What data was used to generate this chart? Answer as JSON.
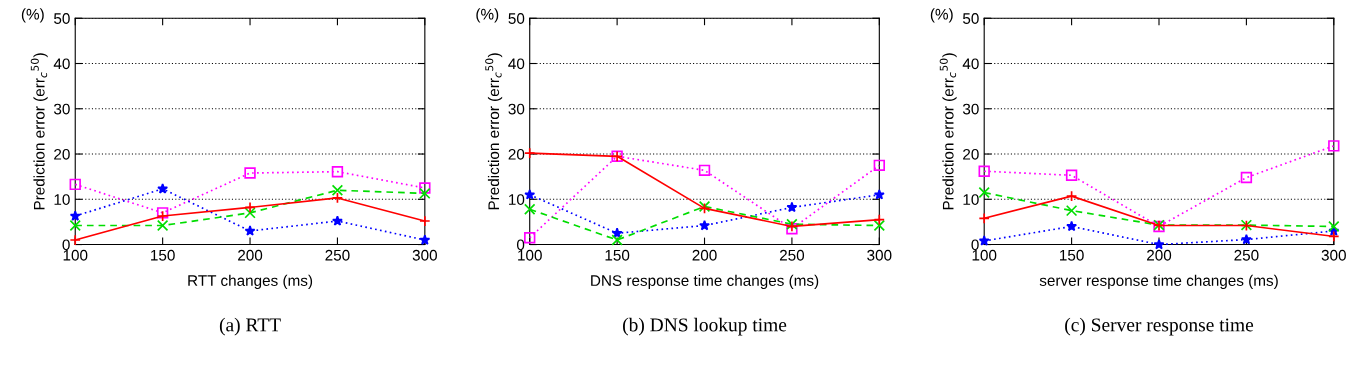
{
  "chart_data": [
    {
      "type": "line",
      "title": "(a) RTT",
      "xlabel": "RTT changes (ms)",
      "ylabel": "Prediction error (err$_{c}$$^{50}$)",
      "annotations": [
        "(%)"
      ],
      "x": [
        100,
        150,
        200,
        250,
        300
      ],
      "xlim": [
        100,
        300
      ],
      "xticks": [
        100,
        150,
        200,
        250,
        300
      ],
      "ylim": [
        0,
        50
      ],
      "yticks": [
        0,
        10,
        20,
        30,
        40,
        50
      ],
      "grid": "y",
      "series": [
        {
          "color": "#ff0000",
          "marker": "plus",
          "line_style": "solid",
          "values": [
            1,
            6.3,
            8.2,
            10.3,
            5.2
          ]
        },
        {
          "color": "#00dd00",
          "marker": "cross",
          "line_style": "dashed",
          "values": [
            4.2,
            4.2,
            7,
            12,
            11.3
          ]
        },
        {
          "color": "#0000ff",
          "marker": "star",
          "line_style": "dotted",
          "values": [
            6.3,
            12.3,
            3,
            5.2,
            1
          ]
        },
        {
          "color": "#ff00ff",
          "marker": "square",
          "line_style": "dotted",
          "values": [
            13.3,
            7,
            15.8,
            16.1,
            12.5
          ]
        }
      ]
    },
    {
      "type": "line",
      "title": "(b) DNS lookup time",
      "xlabel": "DNS response time changes (ms)",
      "ylabel": "Prediction error (err$_{c}$$^{50}$)",
      "annotations": [
        "(%)"
      ],
      "x": [
        100,
        150,
        200,
        250,
        300
      ],
      "xlim": [
        100,
        300
      ],
      "xticks": [
        100,
        150,
        200,
        250,
        300
      ],
      "ylim": [
        0,
        50
      ],
      "yticks": [
        0,
        10,
        20,
        30,
        40,
        50
      ],
      "grid": "y",
      "series": [
        {
          "color": "#ff0000",
          "marker": "plus",
          "line_style": "solid",
          "values": [
            20.2,
            19.5,
            8,
            4,
            5.5
          ]
        },
        {
          "color": "#00dd00",
          "marker": "cross",
          "line_style": "dashed",
          "values": [
            7.8,
            1,
            8.4,
            4.5,
            4.2
          ]
        },
        {
          "color": "#0000ff",
          "marker": "star",
          "line_style": "dotted",
          "values": [
            11,
            2.5,
            4.2,
            8.2,
            11
          ]
        },
        {
          "color": "#ff00ff",
          "marker": "square",
          "line_style": "dotted",
          "values": [
            1.5,
            19.5,
            16.4,
            3.5,
            17.5
          ]
        }
      ]
    },
    {
      "type": "line",
      "title": "(c) Server response time",
      "xlabel": "server response time changes (ms)",
      "ylabel": "Prediction error (err$_{c}$$^{50}$)",
      "annotations": [
        "(%)"
      ],
      "x": [
        100,
        150,
        200,
        250,
        300
      ],
      "xlim": [
        100,
        300
      ],
      "xticks": [
        100,
        150,
        200,
        250,
        300
      ],
      "ylim": [
        0,
        50
      ],
      "yticks": [
        0,
        10,
        20,
        30,
        40,
        50
      ],
      "grid": "y",
      "series": [
        {
          "color": "#ff0000",
          "marker": "plus",
          "line_style": "solid",
          "values": [
            5.8,
            10.7,
            4.2,
            4.2,
            1.8
          ]
        },
        {
          "color": "#00dd00",
          "marker": "cross",
          "line_style": "dashed",
          "values": [
            11.5,
            7.5,
            4.3,
            4.3,
            4
          ]
        },
        {
          "color": "#0000ff",
          "marker": "star",
          "line_style": "dotted",
          "values": [
            0.8,
            4,
            0,
            1.1,
            3
          ]
        },
        {
          "color": "#ff00ff",
          "marker": "square",
          "line_style": "dotted",
          "values": [
            16.2,
            15.3,
            4,
            14.8,
            21.8
          ]
        }
      ]
    }
  ]
}
